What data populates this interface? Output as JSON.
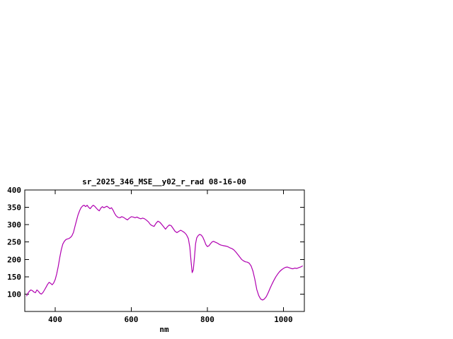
{
  "window": {
    "background_color": "#ffffff"
  },
  "chart_data": {
    "type": "line",
    "title": "sr_2025_346_MSE__y02_r_rad 08-16-00",
    "xlabel": "nm",
    "ylabel": "",
    "xlim": [
      320,
      1055
    ],
    "ylim": [
      50,
      400
    ],
    "xticks": [
      400,
      600,
      800,
      1000
    ],
    "yticks": [
      100,
      150,
      200,
      250,
      300,
      350,
      400
    ],
    "grid": false,
    "legend_position": "none",
    "line_color": "#b000b0",
    "points": [
      [
        325,
        95
      ],
      [
        328,
        102
      ],
      [
        332,
        108
      ],
      [
        336,
        112
      ],
      [
        340,
        110
      ],
      [
        344,
        106
      ],
      [
        348,
        104
      ],
      [
        352,
        112
      ],
      [
        356,
        108
      ],
      [
        360,
        102
      ],
      [
        364,
        100
      ],
      [
        368,
        105
      ],
      [
        372,
        112
      ],
      [
        376,
        120
      ],
      [
        380,
        128
      ],
      [
        384,
        134
      ],
      [
        388,
        131
      ],
      [
        392,
        127
      ],
      [
        396,
        132
      ],
      [
        400,
        142
      ],
      [
        404,
        158
      ],
      [
        408,
        180
      ],
      [
        412,
        205
      ],
      [
        416,
        228
      ],
      [
        420,
        244
      ],
      [
        424,
        252
      ],
      [
        428,
        257
      ],
      [
        432,
        259
      ],
      [
        436,
        260
      ],
      [
        440,
        263
      ],
      [
        444,
        268
      ],
      [
        448,
        278
      ],
      [
        452,
        295
      ],
      [
        456,
        312
      ],
      [
        460,
        328
      ],
      [
        464,
        340
      ],
      [
        468,
        349
      ],
      [
        472,
        354
      ],
      [
        476,
        356
      ],
      [
        480,
        352
      ],
      [
        484,
        356
      ],
      [
        488,
        350
      ],
      [
        492,
        346
      ],
      [
        496,
        352
      ],
      [
        500,
        356
      ],
      [
        504,
        353
      ],
      [
        508,
        348
      ],
      [
        512,
        343
      ],
      [
        516,
        340
      ],
      [
        520,
        348
      ],
      [
        524,
        352
      ],
      [
        528,
        349
      ],
      [
        532,
        351
      ],
      [
        536,
        353
      ],
      [
        540,
        350
      ],
      [
        544,
        346
      ],
      [
        548,
        349
      ],
      [
        552,
        342
      ],
      [
        556,
        333
      ],
      [
        560,
        326
      ],
      [
        565,
        321
      ],
      [
        570,
        320
      ],
      [
        575,
        323
      ],
      [
        580,
        321
      ],
      [
        585,
        317
      ],
      [
        590,
        314
      ],
      [
        595,
        319
      ],
      [
        600,
        323
      ],
      [
        605,
        322
      ],
      [
        610,
        320
      ],
      [
        615,
        322
      ],
      [
        620,
        319
      ],
      [
        625,
        317
      ],
      [
        630,
        319
      ],
      [
        635,
        317
      ],
      [
        640,
        313
      ],
      [
        645,
        308
      ],
      [
        650,
        301
      ],
      [
        655,
        297
      ],
      [
        660,
        295
      ],
      [
        665,
        304
      ],
      [
        670,
        310
      ],
      [
        675,
        307
      ],
      [
        680,
        301
      ],
      [
        685,
        294
      ],
      [
        690,
        287
      ],
      [
        695,
        294
      ],
      [
        700,
        299
      ],
      [
        705,
        297
      ],
      [
        710,
        289
      ],
      [
        715,
        281
      ],
      [
        720,
        277
      ],
      [
        725,
        281
      ],
      [
        730,
        284
      ],
      [
        735,
        281
      ],
      [
        740,
        277
      ],
      [
        745,
        271
      ],
      [
        750,
        260
      ],
      [
        754,
        235
      ],
      [
        757,
        195
      ],
      [
        760,
        162
      ],
      [
        763,
        170
      ],
      [
        766,
        205
      ],
      [
        769,
        245
      ],
      [
        772,
        262
      ],
      [
        776,
        269
      ],
      [
        780,
        272
      ],
      [
        784,
        270
      ],
      [
        788,
        264
      ],
      [
        792,
        254
      ],
      [
        796,
        243
      ],
      [
        800,
        237
      ],
      [
        804,
        239
      ],
      [
        808,
        245
      ],
      [
        812,
        250
      ],
      [
        816,
        252
      ],
      [
        820,
        250
      ],
      [
        824,
        248
      ],
      [
        828,
        246
      ],
      [
        832,
        243
      ],
      [
        836,
        241
      ],
      [
        840,
        240
      ],
      [
        845,
        239
      ],
      [
        850,
        238
      ],
      [
        855,
        236
      ],
      [
        860,
        233
      ],
      [
        865,
        231
      ],
      [
        870,
        227
      ],
      [
        875,
        221
      ],
      [
        880,
        214
      ],
      [
        885,
        207
      ],
      [
        890,
        200
      ],
      [
        895,
        196
      ],
      [
        900,
        193
      ],
      [
        905,
        192
      ],
      [
        910,
        189
      ],
      [
        915,
        181
      ],
      [
        920,
        166
      ],
      [
        925,
        142
      ],
      [
        930,
        113
      ],
      [
        935,
        96
      ],
      [
        940,
        86
      ],
      [
        945,
        83
      ],
      [
        950,
        86
      ],
      [
        955,
        93
      ],
      [
        960,
        104
      ],
      [
        965,
        117
      ],
      [
        970,
        129
      ],
      [
        975,
        140
      ],
      [
        980,
        150
      ],
      [
        985,
        158
      ],
      [
        990,
        165
      ],
      [
        995,
        170
      ],
      [
        1000,
        174
      ],
      [
        1005,
        177
      ],
      [
        1010,
        178
      ],
      [
        1015,
        176
      ],
      [
        1020,
        174
      ],
      [
        1025,
        173
      ],
      [
        1030,
        175
      ],
      [
        1035,
        174
      ],
      [
        1040,
        176
      ],
      [
        1045,
        178
      ],
      [
        1050,
        181
      ]
    ]
  }
}
